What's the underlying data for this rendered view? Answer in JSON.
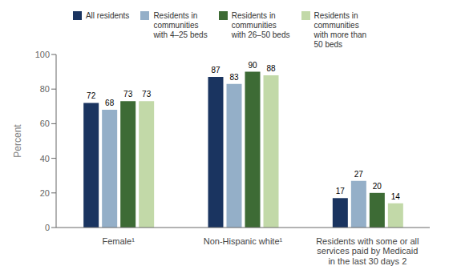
{
  "chart_data": {
    "type": "bar",
    "categories": [
      "Female¹",
      "Non-Hispanic white¹",
      "Residents with some or all\nservices paid by Medicaid\nin the last 30 days 2"
    ],
    "series": [
      {
        "name": "All residents",
        "color": "#1a3460",
        "values": [
          72,
          87,
          17
        ]
      },
      {
        "name": "Residents in\ncommunities\nwith 4–25 beds",
        "color": "#94afc8",
        "values": [
          68,
          83,
          27
        ]
      },
      {
        "name": "Residents in\ncommunities\nwith 26–50 beds",
        "color": "#3d6b35",
        "values": [
          73,
          90,
          20
        ]
      },
      {
        "name": "Residents in\ncommunities\nwith more than\n50 beds",
        "color": "#c2d9a8",
        "values": [
          73,
          88,
          14
        ]
      }
    ],
    "ylabel": "Percent",
    "ylim": [
      0,
      100
    ],
    "yticks": [
      0,
      20,
      40,
      60,
      80,
      100
    ],
    "grid": false,
    "legend": "top",
    "data_labels": true
  }
}
